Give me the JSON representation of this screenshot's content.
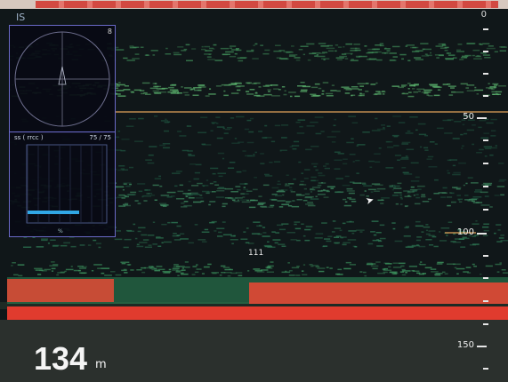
{
  "header": {
    "mode_label": "IS",
    "top_marker": "0"
  },
  "sonar_panel": {
    "corner_label": "8"
  },
  "bar_panel": {
    "title": "ss ( rrcc )",
    "zoom": "75 / 75",
    "axis_label": "%"
  },
  "scale": {
    "labels": [
      "50",
      "100",
      "150"
    ]
  },
  "echo_marker": "111",
  "depth": {
    "value": "134",
    "unit": "m"
  },
  "colors": {
    "background": "#121a1b",
    "panel_border": "#6a6ac8",
    "echo_weak": "#2c6e4c",
    "echo_mid": "#58b36a",
    "echo_strong": "#e23d2f",
    "bottom_band": "#dd3c2c",
    "scale_line": "#e1a25a"
  }
}
